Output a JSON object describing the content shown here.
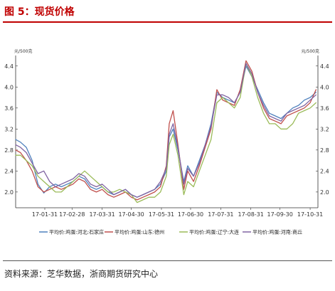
{
  "figure_title": "图 5：现货价格",
  "source_note": "资料来源：芝华数据，浙商期货研究中心",
  "chart_data": {
    "type": "line",
    "title": "",
    "y_unit_left": "元/500克",
    "y_unit_right": "元/500克",
    "ylim": [
      1.7,
      4.6
    ],
    "yticks": [
      2.0,
      2.4,
      2.8,
      3.2,
      3.6,
      4.0,
      4.4
    ],
    "ytick_labels": [
      "2.0",
      "2.4",
      "2.8",
      "3.2",
      "3.6",
      "4.0",
      "4.4"
    ],
    "xlim": [
      "2017-01-01",
      "2017-11-08"
    ],
    "xticks": [
      "2017-01-31",
      "2017-02-28",
      "2017-03-31",
      "2017-04-30",
      "2017-05-31",
      "2017-06-30",
      "2017-07-31",
      "2017-08-31",
      "2017-09-30",
      "2017-10-31"
    ],
    "xtick_labels": [
      "17-01-31",
      "17-02-28",
      "17-03-31",
      "17-04-30",
      "17-05-31",
      "17-06-30",
      "17-07-31",
      "17-08-31",
      "17-09-30",
      "17-10-31"
    ],
    "grid": false,
    "legend_position": "bottom",
    "series": [
      {
        "name": "平均价:鸡蛋:河北:石家庄",
        "color": "#4f81bd",
        "points": [
          [
            "2017-01-01",
            3.0
          ],
          [
            "2017-01-06",
            2.95
          ],
          [
            "2017-01-12",
            2.85
          ],
          [
            "2017-01-18",
            2.6
          ],
          [
            "2017-01-24",
            2.15
          ],
          [
            "2017-01-30",
            1.98
          ],
          [
            "2017-02-05",
            2.1
          ],
          [
            "2017-02-11",
            2.15
          ],
          [
            "2017-02-17",
            2.1
          ],
          [
            "2017-02-23",
            2.15
          ],
          [
            "2017-03-01",
            2.2
          ],
          [
            "2017-03-07",
            2.3
          ],
          [
            "2017-03-13",
            2.25
          ],
          [
            "2017-03-19",
            2.1
          ],
          [
            "2017-03-25",
            2.05
          ],
          [
            "2017-03-31",
            2.1
          ],
          [
            "2017-04-06",
            2.0
          ],
          [
            "2017-04-12",
            1.95
          ],
          [
            "2017-04-18",
            2.0
          ],
          [
            "2017-04-24",
            2.05
          ],
          [
            "2017-04-30",
            1.95
          ],
          [
            "2017-05-06",
            1.9
          ],
          [
            "2017-05-12",
            1.95
          ],
          [
            "2017-05-18",
            2.0
          ],
          [
            "2017-05-24",
            2.05
          ],
          [
            "2017-05-30",
            2.15
          ],
          [
            "2017-06-05",
            2.4
          ],
          [
            "2017-06-08",
            3.05
          ],
          [
            "2017-06-12",
            3.2
          ],
          [
            "2017-06-17",
            2.8
          ],
          [
            "2017-06-23",
            2.2
          ],
          [
            "2017-06-27",
            2.5
          ],
          [
            "2017-07-03",
            2.3
          ],
          [
            "2017-07-09",
            2.6
          ],
          [
            "2017-07-15",
            2.9
          ],
          [
            "2017-07-21",
            3.3
          ],
          [
            "2017-07-27",
            3.9
          ],
          [
            "2017-08-02",
            3.8
          ],
          [
            "2017-08-08",
            3.75
          ],
          [
            "2017-08-14",
            3.7
          ],
          [
            "2017-08-20",
            3.9
          ],
          [
            "2017-08-26",
            4.4
          ],
          [
            "2017-09-01",
            4.2
          ],
          [
            "2017-09-07",
            3.95
          ],
          [
            "2017-09-13",
            3.7
          ],
          [
            "2017-09-19",
            3.5
          ],
          [
            "2017-09-25",
            3.45
          ],
          [
            "2017-10-01",
            3.4
          ],
          [
            "2017-10-07",
            3.5
          ],
          [
            "2017-10-13",
            3.6
          ],
          [
            "2017-10-19",
            3.65
          ],
          [
            "2017-10-25",
            3.75
          ],
          [
            "2017-10-31",
            3.8
          ],
          [
            "2017-11-06",
            3.9
          ]
        ]
      },
      {
        "name": "平均价:鸡蛋:山东:德州",
        "color": "#c0504d",
        "points": [
          [
            "2017-01-01",
            2.8
          ],
          [
            "2017-01-06",
            2.75
          ],
          [
            "2017-01-12",
            2.6
          ],
          [
            "2017-01-18",
            2.4
          ],
          [
            "2017-01-24",
            2.1
          ],
          [
            "2017-01-30",
            2.0
          ],
          [
            "2017-02-05",
            2.05
          ],
          [
            "2017-02-11",
            2.1
          ],
          [
            "2017-02-17",
            2.05
          ],
          [
            "2017-02-23",
            2.1
          ],
          [
            "2017-03-01",
            2.15
          ],
          [
            "2017-03-07",
            2.25
          ],
          [
            "2017-03-13",
            2.2
          ],
          [
            "2017-03-19",
            2.05
          ],
          [
            "2017-03-25",
            2.0
          ],
          [
            "2017-03-31",
            2.05
          ],
          [
            "2017-04-06",
            1.95
          ],
          [
            "2017-04-12",
            1.9
          ],
          [
            "2017-04-18",
            1.95
          ],
          [
            "2017-04-24",
            2.0
          ],
          [
            "2017-04-30",
            1.9
          ],
          [
            "2017-05-06",
            1.85
          ],
          [
            "2017-05-12",
            1.9
          ],
          [
            "2017-05-18",
            1.95
          ],
          [
            "2017-05-24",
            2.0
          ],
          [
            "2017-05-30",
            2.1
          ],
          [
            "2017-06-05",
            2.5
          ],
          [
            "2017-06-08",
            3.3
          ],
          [
            "2017-06-12",
            3.55
          ],
          [
            "2017-06-17",
            2.9
          ],
          [
            "2017-06-23",
            2.05
          ],
          [
            "2017-06-27",
            2.4
          ],
          [
            "2017-07-03",
            2.2
          ],
          [
            "2017-07-09",
            2.5
          ],
          [
            "2017-07-15",
            2.85
          ],
          [
            "2017-07-21",
            3.2
          ],
          [
            "2017-07-27",
            3.95
          ],
          [
            "2017-08-02",
            3.75
          ],
          [
            "2017-08-08",
            3.7
          ],
          [
            "2017-08-14",
            3.65
          ],
          [
            "2017-08-20",
            3.95
          ],
          [
            "2017-08-26",
            4.5
          ],
          [
            "2017-09-01",
            4.3
          ],
          [
            "2017-09-07",
            3.9
          ],
          [
            "2017-09-13",
            3.6
          ],
          [
            "2017-09-19",
            3.4
          ],
          [
            "2017-09-25",
            3.35
          ],
          [
            "2017-10-01",
            3.3
          ],
          [
            "2017-10-07",
            3.45
          ],
          [
            "2017-10-13",
            3.5
          ],
          [
            "2017-10-19",
            3.55
          ],
          [
            "2017-10-25",
            3.6
          ],
          [
            "2017-10-31",
            3.7
          ],
          [
            "2017-11-06",
            3.95
          ]
        ]
      },
      {
        "name": "平均价:鸡蛋:辽宁:大连",
        "color": "#9bbb59",
        "points": [
          [
            "2017-01-01",
            2.7
          ],
          [
            "2017-01-06",
            2.7
          ],
          [
            "2017-01-12",
            2.6
          ],
          [
            "2017-01-18",
            2.5
          ],
          [
            "2017-01-24",
            2.3
          ],
          [
            "2017-01-30",
            2.2
          ],
          [
            "2017-02-05",
            2.1
          ],
          [
            "2017-02-11",
            2.0
          ],
          [
            "2017-02-17",
            2.0
          ],
          [
            "2017-02-23",
            2.1
          ],
          [
            "2017-03-01",
            2.2
          ],
          [
            "2017-03-07",
            2.3
          ],
          [
            "2017-03-13",
            2.4
          ],
          [
            "2017-03-19",
            2.3
          ],
          [
            "2017-03-25",
            2.2
          ],
          [
            "2017-03-31",
            2.1
          ],
          [
            "2017-04-06",
            2.0
          ],
          [
            "2017-04-12",
            2.0
          ],
          [
            "2017-04-18",
            2.05
          ],
          [
            "2017-04-24",
            2.0
          ],
          [
            "2017-04-30",
            1.95
          ],
          [
            "2017-05-06",
            1.8
          ],
          [
            "2017-05-12",
            1.85
          ],
          [
            "2017-05-18",
            1.9
          ],
          [
            "2017-05-24",
            1.9
          ],
          [
            "2017-05-30",
            2.0
          ],
          [
            "2017-06-05",
            2.3
          ],
          [
            "2017-06-08",
            2.9
          ],
          [
            "2017-06-12",
            3.1
          ],
          [
            "2017-06-17",
            2.7
          ],
          [
            "2017-06-23",
            1.95
          ],
          [
            "2017-06-27",
            2.2
          ],
          [
            "2017-07-03",
            2.1
          ],
          [
            "2017-07-09",
            2.4
          ],
          [
            "2017-07-15",
            2.7
          ],
          [
            "2017-07-21",
            3.0
          ],
          [
            "2017-07-27",
            3.7
          ],
          [
            "2017-08-02",
            3.8
          ],
          [
            "2017-08-08",
            3.7
          ],
          [
            "2017-08-14",
            3.6
          ],
          [
            "2017-08-20",
            3.8
          ],
          [
            "2017-08-26",
            4.45
          ],
          [
            "2017-09-01",
            4.2
          ],
          [
            "2017-09-07",
            3.8
          ],
          [
            "2017-09-13",
            3.5
          ],
          [
            "2017-09-19",
            3.3
          ],
          [
            "2017-09-25",
            3.3
          ],
          [
            "2017-10-01",
            3.2
          ],
          [
            "2017-10-07",
            3.2
          ],
          [
            "2017-10-13",
            3.3
          ],
          [
            "2017-10-19",
            3.5
          ],
          [
            "2017-10-25",
            3.55
          ],
          [
            "2017-10-31",
            3.6
          ],
          [
            "2017-11-06",
            3.7
          ]
        ]
      },
      {
        "name": "平均价:鸡蛋:河南:商丘",
        "color": "#8064a2",
        "points": [
          [
            "2017-01-01",
            2.9
          ],
          [
            "2017-01-06",
            2.85
          ],
          [
            "2017-01-12",
            2.75
          ],
          [
            "2017-01-18",
            2.55
          ],
          [
            "2017-01-24",
            2.35
          ],
          [
            "2017-01-30",
            2.4
          ],
          [
            "2017-02-05",
            2.2
          ],
          [
            "2017-02-11",
            2.1
          ],
          [
            "2017-02-17",
            2.15
          ],
          [
            "2017-02-23",
            2.2
          ],
          [
            "2017-03-01",
            2.25
          ],
          [
            "2017-03-07",
            2.35
          ],
          [
            "2017-03-13",
            2.3
          ],
          [
            "2017-03-19",
            2.15
          ],
          [
            "2017-03-25",
            2.1
          ],
          [
            "2017-03-31",
            2.15
          ],
          [
            "2017-04-06",
            2.05
          ],
          [
            "2017-04-12",
            1.95
          ],
          [
            "2017-04-18",
            2.0
          ],
          [
            "2017-04-24",
            2.05
          ],
          [
            "2017-04-30",
            1.95
          ],
          [
            "2017-05-06",
            1.9
          ],
          [
            "2017-05-12",
            1.95
          ],
          [
            "2017-05-18",
            2.0
          ],
          [
            "2017-05-24",
            2.05
          ],
          [
            "2017-05-30",
            2.2
          ],
          [
            "2017-06-05",
            2.45
          ],
          [
            "2017-06-08",
            3.1
          ],
          [
            "2017-06-12",
            3.3
          ],
          [
            "2017-06-17",
            2.85
          ],
          [
            "2017-06-23",
            2.15
          ],
          [
            "2017-06-27",
            2.45
          ],
          [
            "2017-07-03",
            2.3
          ],
          [
            "2017-07-09",
            2.55
          ],
          [
            "2017-07-15",
            2.9
          ],
          [
            "2017-07-21",
            3.25
          ],
          [
            "2017-07-27",
            3.85
          ],
          [
            "2017-08-02",
            3.85
          ],
          [
            "2017-08-08",
            3.8
          ],
          [
            "2017-08-14",
            3.7
          ],
          [
            "2017-08-20",
            3.9
          ],
          [
            "2017-08-26",
            4.45
          ],
          [
            "2017-09-01",
            4.25
          ],
          [
            "2017-09-07",
            3.9
          ],
          [
            "2017-09-13",
            3.65
          ],
          [
            "2017-09-19",
            3.45
          ],
          [
            "2017-09-25",
            3.4
          ],
          [
            "2017-10-01",
            3.35
          ],
          [
            "2017-10-07",
            3.5
          ],
          [
            "2017-10-13",
            3.55
          ],
          [
            "2017-10-19",
            3.6
          ],
          [
            "2017-10-25",
            3.65
          ],
          [
            "2017-10-31",
            3.75
          ],
          [
            "2017-11-06",
            3.85
          ]
        ]
      }
    ]
  }
}
